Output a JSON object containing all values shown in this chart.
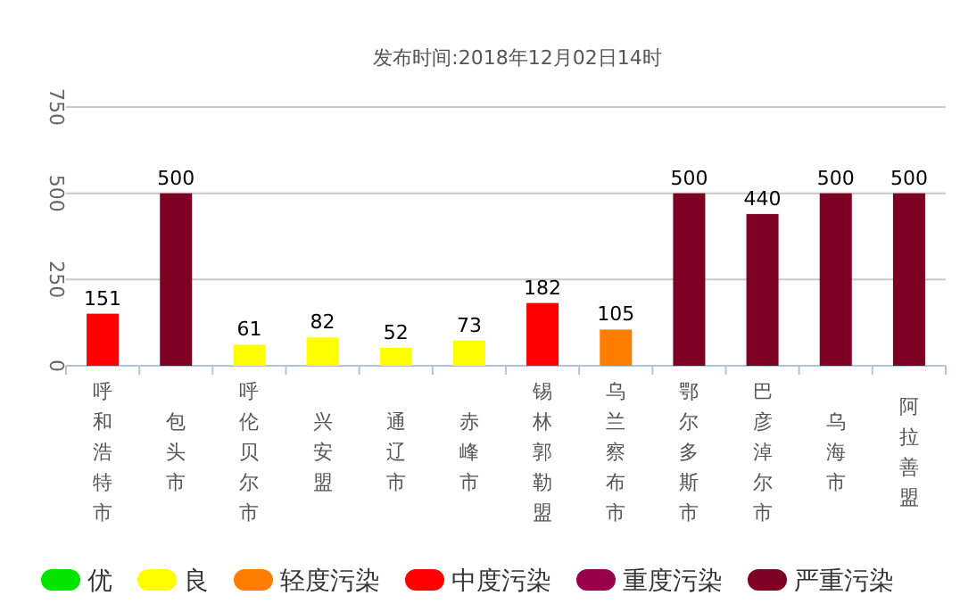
{
  "chart_data": {
    "type": "bar",
    "subtitle": "发布时间:2018年12月02日14时",
    "categories": [
      "呼和浩特市",
      "包头市",
      "呼伦贝尔市",
      "兴安盟",
      "通辽市",
      "赤峰市",
      "锡林郭勒盟",
      "乌兰察布市",
      "鄂尔多斯市",
      "巴彦淖尔市",
      "乌海市",
      "阿拉善盟"
    ],
    "series": [
      {
        "name": "优",
        "color": "#00e400",
        "values": [
          null,
          null,
          null,
          null,
          null,
          null,
          null,
          null,
          null,
          null,
          null,
          null
        ]
      },
      {
        "name": "良",
        "color": "#ffff00",
        "values": [
          null,
          null,
          61,
          82,
          52,
          73,
          null,
          null,
          null,
          null,
          null,
          null
        ]
      },
      {
        "name": "轻度污染",
        "color": "#ff7e00",
        "values": [
          null,
          null,
          null,
          null,
          null,
          null,
          null,
          105,
          null,
          null,
          null,
          null
        ]
      },
      {
        "name": "中度污染",
        "color": "#ff0000",
        "values": [
          151,
          null,
          null,
          null,
          null,
          null,
          182,
          null,
          null,
          null,
          null,
          null
        ]
      },
      {
        "name": "重度污染",
        "color": "#99004c",
        "values": [
          null,
          null,
          null,
          null,
          null,
          null,
          null,
          null,
          null,
          null,
          null,
          null
        ]
      },
      {
        "name": "严重污染",
        "color": "#7e0023",
        "values": [
          null,
          500,
          null,
          null,
          null,
          null,
          null,
          null,
          500,
          440,
          500,
          500
        ]
      }
    ],
    "ylim": [
      0,
      750
    ],
    "yticks": [
      0,
      250,
      500,
      750
    ],
    "grid": "y",
    "data_labels": true,
    "legend": "bottom"
  }
}
